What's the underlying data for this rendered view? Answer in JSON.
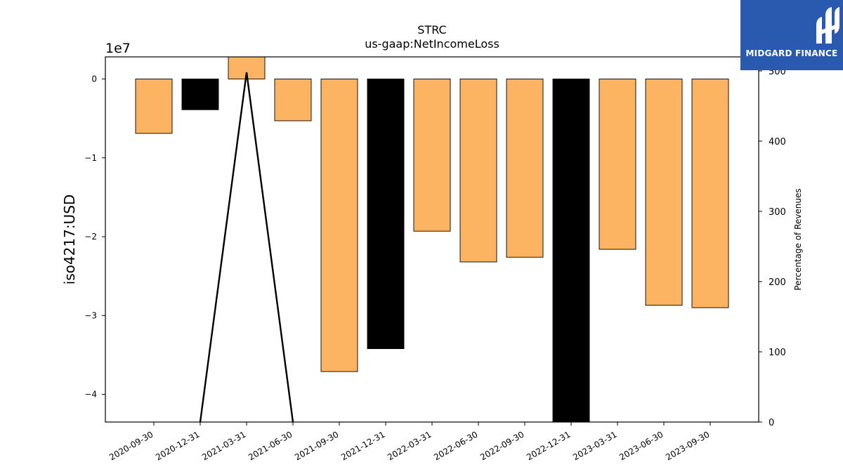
{
  "chart_data": {
    "type": "bar",
    "title": "STRC",
    "subtitle": "us-gaap:NetIncomeLoss",
    "ylabel": "iso4217:USD",
    "y2label": "Percentage of Revenues",
    "y_multiplier_label": "1e7",
    "categories": [
      "2020-09-30",
      "2020-12-31",
      "2021-03-31",
      "2021-06-30",
      "2021-09-30",
      "2021-12-31",
      "2022-03-31",
      "2022-06-30",
      "2022-09-30",
      "2022-12-31",
      "2023-03-31",
      "2023-06-30",
      "2023-09-30"
    ],
    "series": [
      {
        "type": "bar",
        "values": [
          -6900000,
          -3900000,
          2800000,
          -5300000,
          -37100000,
          -34200000,
          -19300000,
          -23200000,
          -22600000,
          -43500000,
          -21600000,
          -28700000,
          -29000000
        ],
        "colors": [
          "#fdb462",
          "#000000",
          "#fdb462",
          "#fdb462",
          "#fdb462",
          "#000000",
          "#fdb462",
          "#fdb462",
          "#fdb462",
          "#000000",
          "#fdb462",
          "#fdb462",
          "#fdb462"
        ]
      },
      {
        "type": "line",
        "axis": "right",
        "x": [
          "2020-12-31",
          "2021-03-31",
          "2021-06-30"
        ],
        "values": [
          0,
          498,
          0
        ],
        "color": "#000000"
      }
    ],
    "ylim": [
      -43500000,
      2800000
    ],
    "yticks": [
      0,
      -10000000,
      -20000000,
      -30000000,
      -40000000
    ],
    "ytick_labels": [
      "0",
      "−1",
      "−2",
      "−3",
      "−4"
    ],
    "y2lim": [
      0,
      520
    ],
    "y2ticks": [
      0,
      100,
      200,
      300,
      400,
      500
    ],
    "y2tick_labels": [
      "0",
      "100",
      "200",
      "300",
      "400",
      "500"
    ],
    "grid": false,
    "legend": "none"
  },
  "logo": {
    "text": "MIDGARD FINANCE"
  }
}
